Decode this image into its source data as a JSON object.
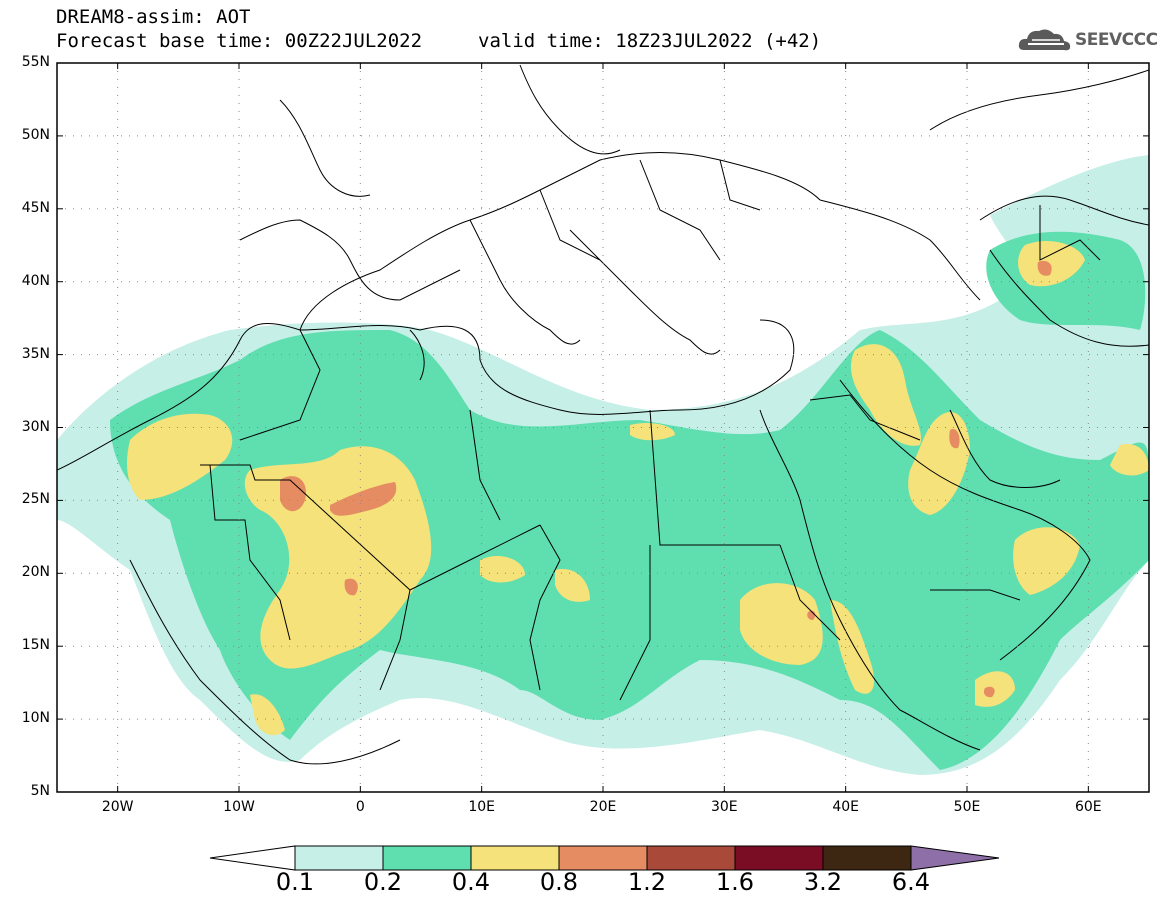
{
  "header": {
    "line1": "DREAM8-assim: AOT",
    "line2": "Forecast base time: 00Z22JUL2022",
    "valid": "valid time: 18Z23JUL2022 (+42)"
  },
  "logo": {
    "text": "SEEVCCC",
    "icon": "cloud-logo-icon"
  },
  "map": {
    "lat_labels": [
      "55N",
      "50N",
      "45N",
      "40N",
      "35N",
      "30N",
      "25N",
      "20N",
      "15N",
      "10N",
      "5N"
    ],
    "lon_labels": [
      "20W",
      "10W",
      "0",
      "10E",
      "20E",
      "30E",
      "40E",
      "50E",
      "60E"
    ],
    "extent": {
      "lon": [
        -25,
        65
      ],
      "lat": [
        5,
        55
      ]
    }
  },
  "colorbar": {
    "labels": [
      "0.1",
      "0.2",
      "0.4",
      "0.8",
      "1.2",
      "1.6",
      "3.2",
      "6.4"
    ],
    "colors": [
      "#ffffff",
      "#c6efe7",
      "#5fdeb0",
      "#f5e27a",
      "#e58c62",
      "#a8493a",
      "#7a0c24",
      "#3d2713",
      "#8f6fa8"
    ]
  }
}
